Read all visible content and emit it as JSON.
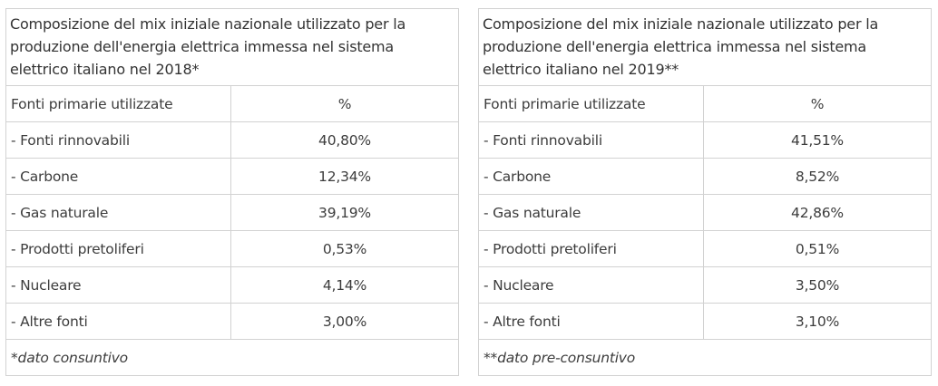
{
  "tables": [
    {
      "caption": "Composizione del mix iniziale nazionale utilizzato per la produzione dell'energia elettrica immessa nel sistema elettrico italiano nel 2018",
      "caption_mark": "*",
      "header": {
        "source": "Fonti primarie utilizzate",
        "value": "%"
      },
      "rows": [
        {
          "source": "- Fonti rinnovabili",
          "value": "40,80%"
        },
        {
          "source": "- Carbone",
          "value": "12,34%"
        },
        {
          "source": "- Gas naturale",
          "value": "39,19%"
        },
        {
          "source": "- Prodotti pretoliferi",
          "value": "0,53%"
        },
        {
          "source": "- Nucleare",
          "value": "4,14%"
        },
        {
          "source": "- Altre fonti",
          "value": "3,00%"
        }
      ],
      "note": "*dato consuntivo"
    },
    {
      "caption": "Composizione del mix iniziale nazionale utilizzato per la produzione dell'energia elettrica immessa nel sistema elettrico italiano nel 2019",
      "caption_mark": "**",
      "header": {
        "source": "Fonti primarie utilizzate",
        "value": "%"
      },
      "rows": [
        {
          "source": "- Fonti rinnovabili",
          "value": "41,51%"
        },
        {
          "source": "- Carbone",
          "value": "8,52%"
        },
        {
          "source": "- Gas naturale",
          "value": "42,86%"
        },
        {
          "source": "- Prodotti pretoliferi",
          "value": "0,51%"
        },
        {
          "source": "- Nucleare",
          "value": "3,50%"
        },
        {
          "source": "- Altre fonti",
          "value": "3,10%"
        }
      ],
      "note": "**dato pre-consuntivo"
    }
  ],
  "colors": {
    "text": "#3c3c3c",
    "border": "#d2d2d2",
    "background": "#ffffff"
  }
}
